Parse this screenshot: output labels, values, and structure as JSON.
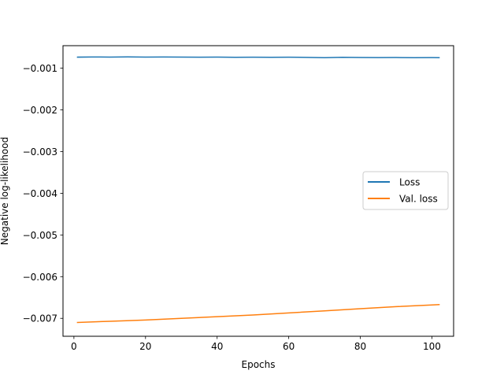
{
  "chart_data": {
    "type": "line",
    "xlabel": "Epochs",
    "ylabel": "Negative log-likelihood",
    "xlim": [
      -3.05,
      106.05
    ],
    "ylim": [
      -0.00743,
      -0.00046
    ],
    "x_ticks": [
      0,
      20,
      40,
      60,
      80,
      100
    ],
    "x_tick_labels": [
      "0",
      "20",
      "40",
      "60",
      "80",
      "100"
    ],
    "y_ticks": [
      -0.007,
      -0.006,
      -0.005,
      -0.004,
      -0.003,
      -0.002,
      -0.001
    ],
    "y_tick_labels": [
      "−0.007",
      "−0.006",
      "−0.005",
      "−0.004",
      "−0.003",
      "−0.002",
      "−0.001"
    ],
    "grid": false,
    "legend_position": "center-right",
    "series": [
      {
        "name": "Loss",
        "color": "#1f77b4",
        "x": [
          1,
          5,
          10,
          15,
          20,
          25,
          30,
          35,
          40,
          45,
          50,
          55,
          60,
          65,
          70,
          75,
          80,
          85,
          90,
          95,
          100,
          102
        ],
        "y": [
          -0.000735,
          -0.000731,
          -0.000734,
          -0.000729,
          -0.000733,
          -0.000731,
          -0.000735,
          -0.000737,
          -0.000734,
          -0.000738,
          -0.000736,
          -0.000739,
          -0.000737,
          -0.000741,
          -0.000748,
          -0.000739,
          -0.000743,
          -0.000746,
          -0.000744,
          -0.000747,
          -0.000745,
          -0.000747
        ]
      },
      {
        "name": "Val. loss",
        "color": "#ff7f0e",
        "x": [
          1,
          10,
          20,
          30,
          40,
          50,
          60,
          70,
          80,
          90,
          100,
          102
        ],
        "y": [
          -0.0071,
          -0.00707,
          -0.00704,
          -0.007,
          -0.00696,
          -0.00692,
          -0.00687,
          -0.00682,
          -0.00677,
          -0.00672,
          -0.00668,
          -0.00667
        ]
      }
    ]
  }
}
